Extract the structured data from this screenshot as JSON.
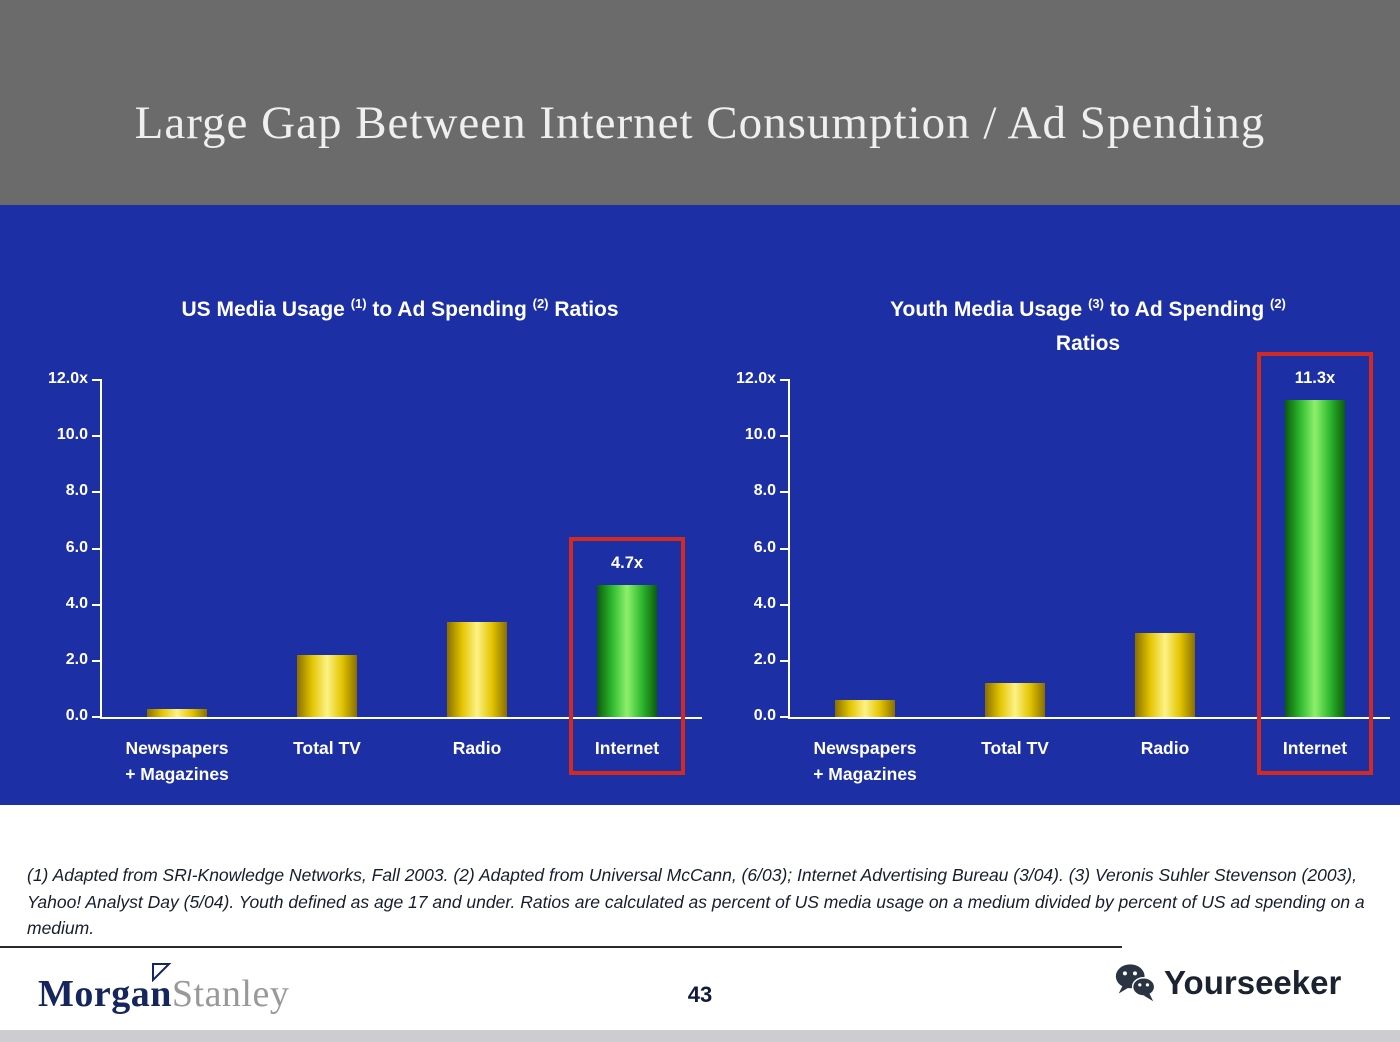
{
  "slide": {
    "title": "Large Gap Between Internet Consumption / Ad Spending",
    "footnote": "(1) Adapted from SRI-Knowledge Networks, Fall 2003.  (2) Adapted from Universal McCann, (6/03); Internet Advertising Bureau (3/04). (3) Veronis Suhler Stevenson (2003), Yahoo! Analyst Day (5/04).  Youth defined as age 17 and under.  Ratios are calculated as percent of US media usage on a medium divided by percent of US ad spending on a medium."
  },
  "footer": {
    "brand_morgan": "Morgan",
    "brand_stanley": "Stanley",
    "page_number": "43",
    "watermark": "Yourseeker"
  },
  "colors": {
    "background_blue": "#1c2fa4",
    "header_gray": "#6b6b6b",
    "bar_yellow": "#e3c400",
    "bar_green": "#2eb82e",
    "highlight_red": "#cf2b24",
    "text_white": "#ffffff"
  },
  "chart_data": [
    {
      "type": "bar",
      "title": "US Media Usage (1) to Ad Spending (2) Ratios",
      "title_parts": [
        {
          "t": "US Media Usage "
        },
        {
          "t": "(1)",
          "sup": true
        },
        {
          "t": " to Ad Spending "
        },
        {
          "t": "(2)",
          "sup": true
        },
        {
          "t": " Ratios"
        }
      ],
      "categories": [
        [
          "Newspapers",
          "+ Magazines"
        ],
        [
          "Total TV"
        ],
        [
          "Radio"
        ],
        [
          "Internet"
        ]
      ],
      "values": [
        0.3,
        2.2,
        3.4,
        4.7
      ],
      "bar_labels": [
        null,
        null,
        null,
        "4.7x"
      ],
      "bar_colors": [
        "yellow",
        "yellow",
        "yellow",
        "green"
      ],
      "highlight_index": 3,
      "y_ticks": [
        {
          "label": "12.0x",
          "value": 12.0
        },
        {
          "label": "10.0",
          "value": 10.0
        },
        {
          "label": "8.0",
          "value": 8.0
        },
        {
          "label": "6.0",
          "value": 6.0
        },
        {
          "label": "4.0",
          "value": 4.0
        },
        {
          "label": "2.0",
          "value": 2.0
        },
        {
          "label": "0.0",
          "value": 0.0
        }
      ],
      "ylim": [
        0,
        12
      ],
      "xlabel": "",
      "ylabel": "",
      "grid": false,
      "legend": false
    },
    {
      "type": "bar",
      "title": "Youth Media Usage (3) to Ad Spending (2) Ratios",
      "title_parts": [
        {
          "t": "Youth Media Usage "
        },
        {
          "t": "(3)",
          "sup": true
        },
        {
          "t": " to Ad Spending "
        },
        {
          "t": "(2)",
          "sup": true
        },
        {
          "br": true
        },
        {
          "t": "Ratios"
        }
      ],
      "categories": [
        [
          "Newspapers",
          "+ Magazines"
        ],
        [
          "Total TV"
        ],
        [
          "Radio"
        ],
        [
          "Internet"
        ]
      ],
      "values": [
        0.6,
        1.2,
        3.0,
        11.3
      ],
      "bar_labels": [
        null,
        null,
        null,
        "11.3x"
      ],
      "bar_colors": [
        "yellow",
        "yellow",
        "yellow",
        "green"
      ],
      "highlight_index": 3,
      "y_ticks": [
        {
          "label": "12.0x",
          "value": 12.0
        },
        {
          "label": "10.0",
          "value": 10.0
        },
        {
          "label": "8.0",
          "value": 8.0
        },
        {
          "label": "6.0",
          "value": 6.0
        },
        {
          "label": "4.0",
          "value": 4.0
        },
        {
          "label": "2.0",
          "value": 2.0
        },
        {
          "label": "0.0",
          "value": 0.0
        }
      ],
      "ylim": [
        0,
        12
      ],
      "xlabel": "",
      "ylabel": "",
      "grid": false,
      "legend": false
    }
  ]
}
